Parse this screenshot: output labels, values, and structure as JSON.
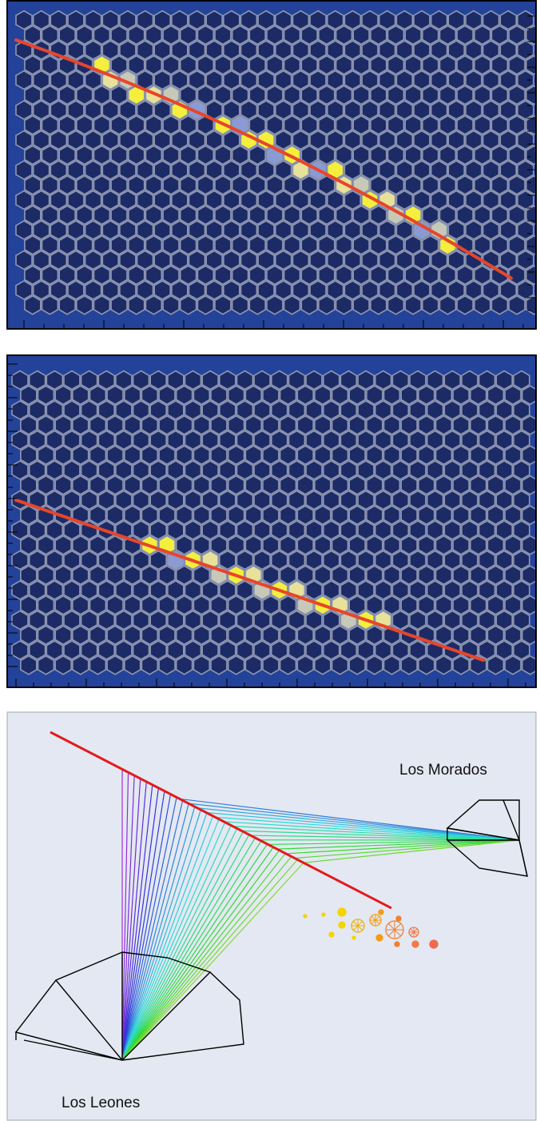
{
  "detectors": [
    {
      "label": "Los Morados"
    },
    {
      "label": "Los Leones"
    }
  ]
}
